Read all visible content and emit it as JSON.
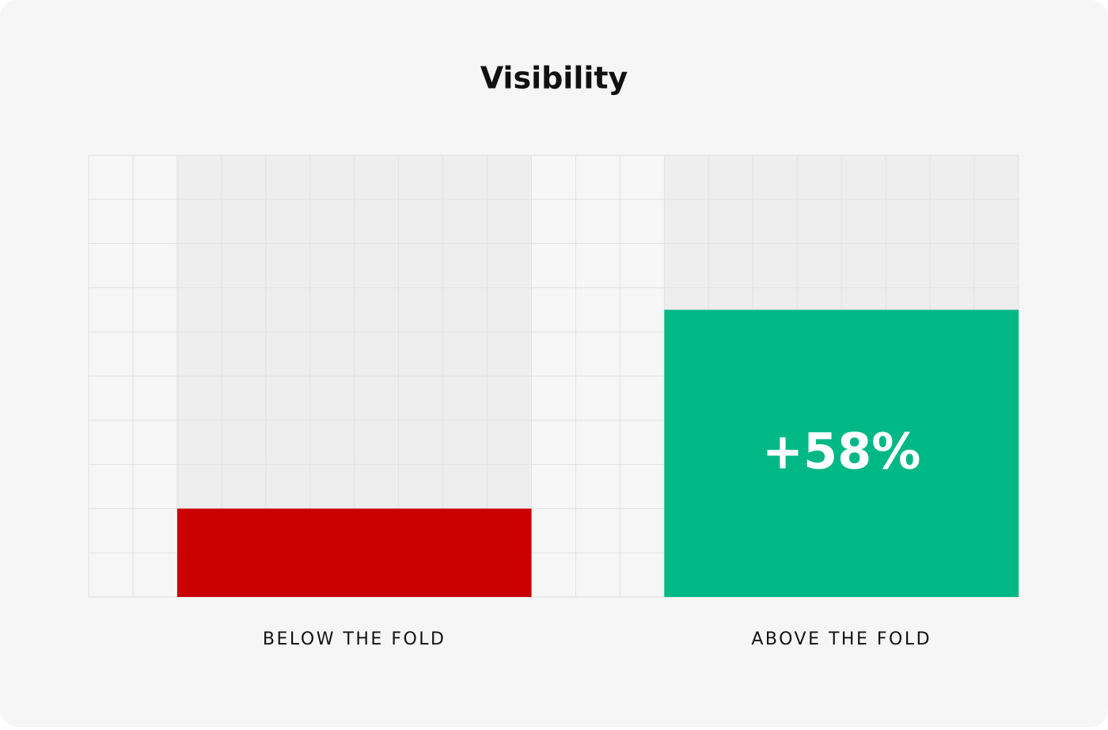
{
  "chart_data": {
    "type": "bar",
    "title": "Visibility",
    "categories": [
      "BELOW THE FOLD",
      "ABOVE THE FOLD"
    ],
    "values": [
      2,
      6.5
    ],
    "colors": [
      "#c80000",
      "#00b886"
    ],
    "annotation": "+58%",
    "ylim": [
      0,
      10
    ]
  }
}
